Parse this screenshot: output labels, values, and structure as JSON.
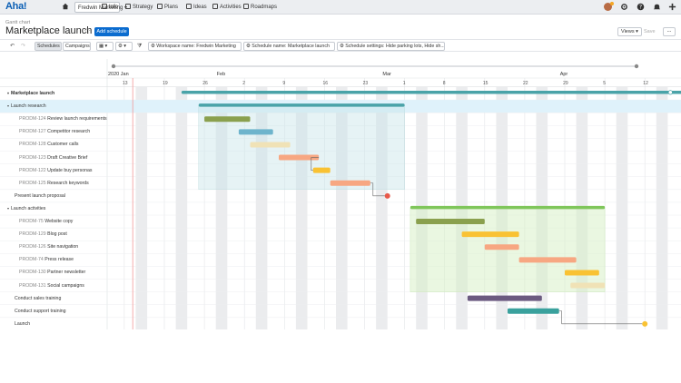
{
  "nav": {
    "logo": "Aha!",
    "workspace": "Fredwin Marketing",
    "items": [
      {
        "label": "Info",
        "icon": "info-icon"
      },
      {
        "label": "Strategy",
        "icon": "strategy-icon"
      },
      {
        "label": "Plans",
        "icon": "plans-icon"
      },
      {
        "label": "Ideas",
        "icon": "ideas-icon"
      },
      {
        "label": "Activities",
        "icon": "activities-icon"
      },
      {
        "label": "Roadmaps",
        "icon": "roadmaps-icon"
      }
    ]
  },
  "header": {
    "breadcrumb": "Gantt chart",
    "title": "Marketplace launch",
    "add_label": "Add schedule",
    "views_label": "Views",
    "save_label": "Save",
    "more_label": "..."
  },
  "toolbar": {
    "tabs": [
      "Schedules",
      "Campaigns"
    ],
    "workspace_filter": "Workspace name: Fredwin Marketing",
    "schedule_filter": "Schedule name: Marketplace launch",
    "settings_filter": "Schedule settings: Hide parking lots, Hide sh..."
  },
  "timeline": {
    "months": [
      {
        "label": "2020 Jan",
        "day": 0
      },
      {
        "label": "Feb",
        "day": 19
      },
      {
        "label": "Mar",
        "day": 48
      },
      {
        "label": "Apr",
        "day": 79
      }
    ],
    "days": [
      "13",
      "19",
      "26",
      "2",
      "9",
      "16",
      "23",
      "1",
      "8",
      "15",
      "22",
      "29",
      "5",
      "12"
    ],
    "today_day": 4
  },
  "rows": [
    {
      "id": "",
      "label": "Marketplace launch",
      "level": 0,
      "group": true,
      "bold": true,
      "bar": {
        "start": 13,
        "end": 101,
        "color": "#4aa3a8"
      },
      "selected": false
    },
    {
      "id": "",
      "label": "Launch research",
      "level": 1,
      "group": true,
      "bold": false,
      "bar": {
        "start": 16,
        "end": 52,
        "color": "#4aa3a8"
      },
      "selected": true
    },
    {
      "id": "PRODM-124",
      "label": "Review launch requirements",
      "level": 2,
      "bar": {
        "start": 17,
        "end": 25,
        "color": "#8aa04e"
      }
    },
    {
      "id": "PRODM-127",
      "label": "Competitor research",
      "level": 2,
      "bar": {
        "start": 23,
        "end": 29,
        "color": "#6eb4cc"
      }
    },
    {
      "id": "PRODM-128",
      "label": "Customer calls",
      "level": 2,
      "bar": {
        "start": 25,
        "end": 32,
        "color": "#f0e2b6"
      }
    },
    {
      "id": "PRODM-123",
      "label": "Draft Creative Brief",
      "level": 2,
      "bar": {
        "start": 30,
        "end": 37,
        "color": "#f7a782"
      }
    },
    {
      "id": "PRODM-122",
      "label": "Update buy personas",
      "level": 2,
      "bar": {
        "start": 36,
        "end": 39,
        "color": "#f9c233"
      }
    },
    {
      "id": "PRODM-125",
      "label": "Research keywords",
      "level": 2,
      "bar": {
        "start": 39,
        "end": 46,
        "color": "#f7a782"
      }
    },
    {
      "id": "",
      "label": "Present launch proposal",
      "level": 1,
      "milestone": {
        "day": 49,
        "color": "#e8594a"
      }
    },
    {
      "id": "",
      "label": "Launch activities",
      "level": 1,
      "group": true,
      "bar": {
        "start": 53,
        "end": 87,
        "color": "#7fc65a"
      }
    },
    {
      "id": "PRODM-75",
      "label": "Website copy",
      "level": 2,
      "bar": {
        "start": 54,
        "end": 66,
        "color": "#8aa04e"
      }
    },
    {
      "id": "PRODM-129",
      "label": "Blog post",
      "level": 2,
      "bar": {
        "start": 62,
        "end": 72,
        "color": "#f9c233"
      }
    },
    {
      "id": "PRODM-126",
      "label": "Site navigation",
      "level": 2,
      "bar": {
        "start": 66,
        "end": 72,
        "color": "#f7a782"
      }
    },
    {
      "id": "PRODM-74",
      "label": "Press release",
      "level": 2,
      "bar": {
        "start": 72,
        "end": 82,
        "color": "#f7a782"
      }
    },
    {
      "id": "PRODM-130",
      "label": "Partner newsletter",
      "level": 2,
      "bar": {
        "start": 80,
        "end": 86,
        "color": "#f9c233"
      }
    },
    {
      "id": "PRODM-131",
      "label": "Social campaigns",
      "level": 2,
      "bar": {
        "start": 81,
        "end": 87,
        "color": "#f0e2b6"
      }
    },
    {
      "id": "",
      "label": "Conduct sales training",
      "level": 1,
      "bar": {
        "start": 63,
        "end": 76,
        "color": "#6b5a80"
      }
    },
    {
      "id": "",
      "label": "Conduct support training",
      "level": 1,
      "bar": {
        "start": 70,
        "end": 79,
        "color": "#3aa19d"
      }
    },
    {
      "id": "",
      "label": "Launch",
      "level": 1,
      "milestone": {
        "day": 94,
        "color": "#f9c233"
      }
    }
  ],
  "dependencies": [
    [
      5,
      6
    ],
    [
      7,
      8
    ],
    [
      17,
      18
    ]
  ]
}
